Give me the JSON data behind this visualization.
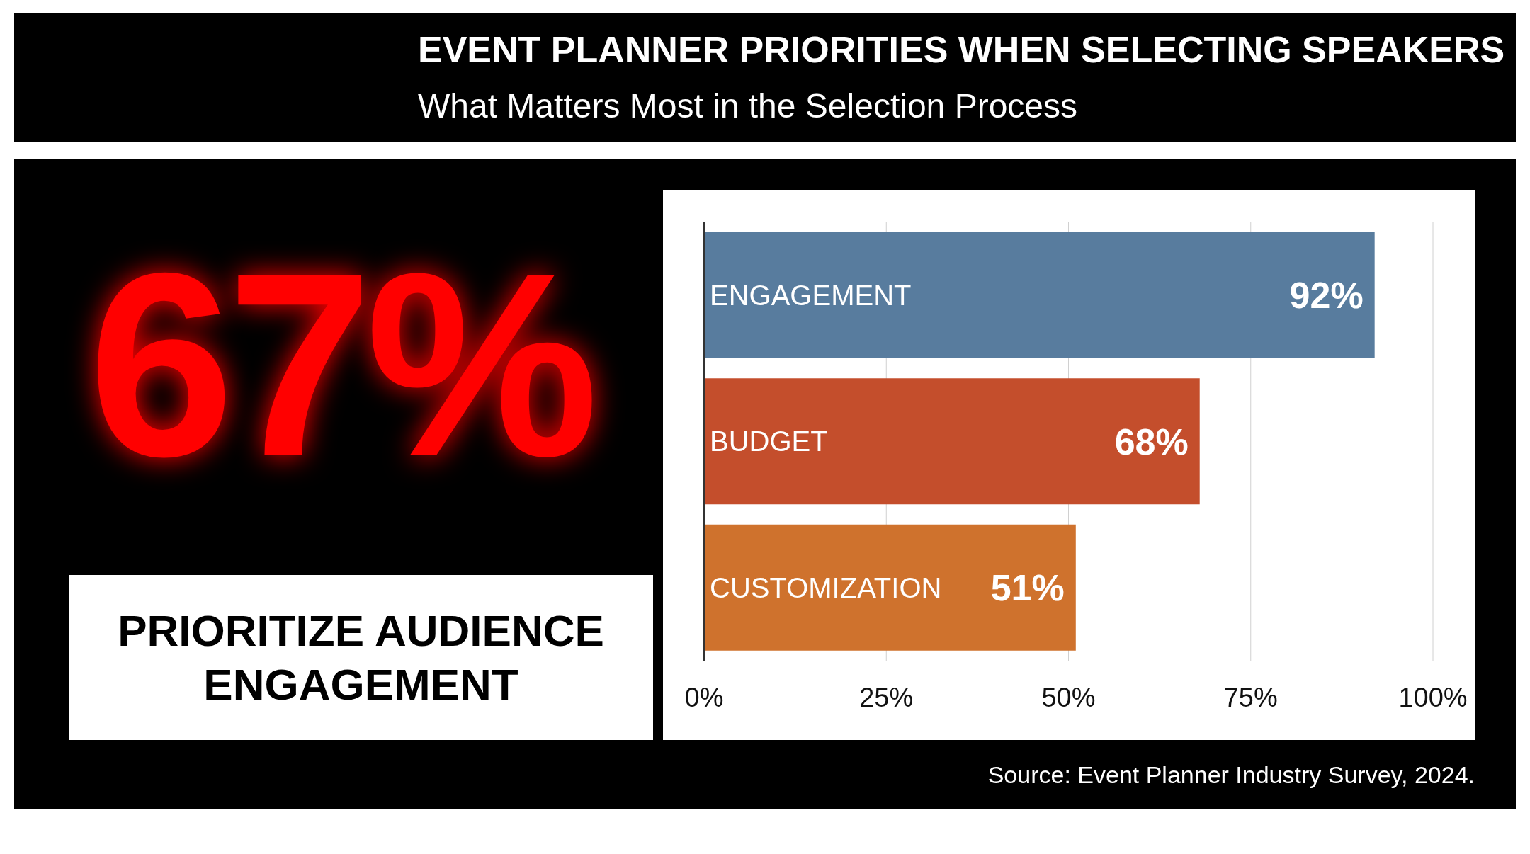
{
  "chart_data": {
    "type": "bar",
    "orientation": "horizontal",
    "title": "EVENT PLANNER PRIORITIES WHEN SELECTING SPEAKERS",
    "subtitle": "What Matters Most in the Selection Process",
    "categories": [
      "ENGAGEMENT",
      "BUDGET",
      "CUSTOMIZATION"
    ],
    "values": [
      92,
      68,
      51
    ],
    "colors": [
      "#587c9e",
      "#c44e2c",
      "#cf722d"
    ],
    "value_labels": [
      "92%",
      "68%",
      "51%"
    ],
    "xlim": [
      0,
      100
    ],
    "xticks": [
      {
        "value": 0,
        "label": "0%"
      },
      {
        "value": 25,
        "label": "25%"
      },
      {
        "value": 50,
        "label": "50%"
      },
      {
        "value": 75,
        "label": "75%"
      },
      {
        "value": 100,
        "label": "100%"
      }
    ],
    "grid": "x",
    "annotations": [
      "67%",
      "PRIORITIZE AUDIENCE ENGAGEMENT",
      "Source: Event Planner Industry Survey, 2024."
    ]
  }
}
